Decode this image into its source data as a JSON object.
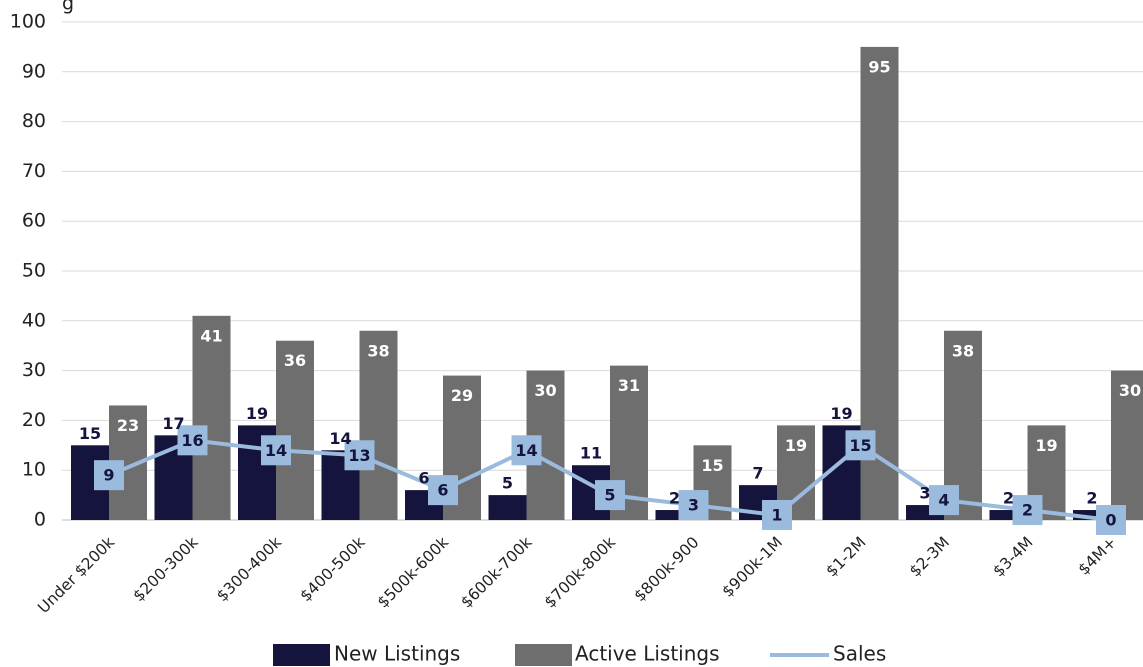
{
  "chart_data": {
    "type": "bar",
    "title_fragment": "g",
    "categories": [
      "Under $200k",
      "$200-300k",
      "$300-400k",
      "$400-500k",
      "$500k-600k",
      "$600k-700k",
      "$700k-800k",
      "$800k-900",
      "$900k-1M",
      "$1-2M",
      "$2-3M",
      "$3-4M",
      "$4M+"
    ],
    "series": [
      {
        "name": "New Listings",
        "type": "bar",
        "color": "#14143c",
        "values": [
          15,
          17,
          19,
          14,
          6,
          5,
          11,
          2,
          7,
          19,
          3,
          2,
          2
        ]
      },
      {
        "name": "Active Listings",
        "type": "bar",
        "color": "#6e6e6e",
        "values": [
          23,
          41,
          36,
          38,
          29,
          30,
          31,
          15,
          19,
          95,
          38,
          19,
          30
        ]
      },
      {
        "name": "Sales",
        "type": "line",
        "color": "#9bbbde",
        "values": [
          9,
          16,
          14,
          13,
          6,
          14,
          5,
          3,
          1,
          15,
          4,
          2,
          0
        ]
      }
    ],
    "ylim": [
      0,
      100
    ],
    "yticks": [
      "0",
      "10",
      "20",
      "30",
      "40",
      "50",
      "60",
      "70",
      "80",
      "90",
      "100"
    ],
    "grid": true,
    "legend": "bottom"
  }
}
